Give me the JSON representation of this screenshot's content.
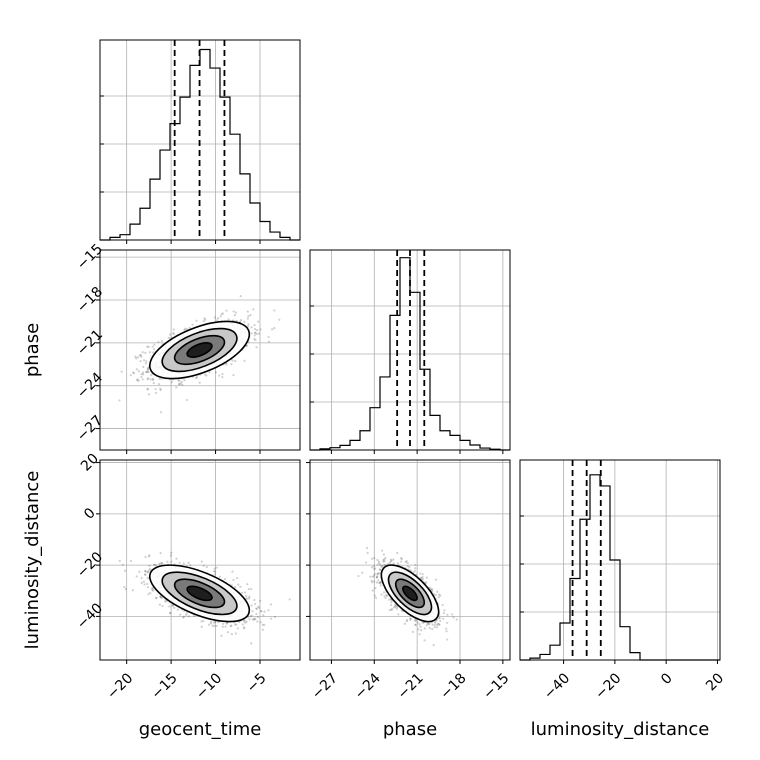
{
  "chart_data": {
    "type": "corner",
    "parameters": [
      "geocent_time",
      "phase",
      "luminosity_distance"
    ],
    "axis_labels": {
      "geocent_time": "geocent_time",
      "phase": "phase",
      "luminosity_distance": "luminosity_distance"
    },
    "ticks": {
      "geocent_time": [
        -20,
        -15,
        -10,
        -5
      ],
      "phase": [
        -27,
        -24,
        -21,
        -18,
        -15
      ],
      "luminosity_distance": [
        -40,
        -20,
        0,
        20
      ]
    },
    "tick_labels": {
      "geocent_time": [
        "−20",
        "−15",
        "−10",
        "−5"
      ],
      "phase": [
        "−27",
        "−24",
        "−21",
        "−18",
        "−15"
      ],
      "luminosity_distance": [
        "−40",
        "−20",
        "0",
        "20"
      ]
    },
    "ranges": {
      "geocent_time": [
        -23,
        -0.5
      ],
      "phase": [
        -28.5,
        -14.5
      ],
      "luminosity_distance": [
        -57,
        21
      ]
    },
    "quantiles": {
      "geocent_time": [
        -14.6,
        -11.8,
        -9.0
      ],
      "phase": [
        -22.4,
        -21.5,
        -20.5
      ],
      "luminosity_distance": [
        -36.5,
        -31.0,
        -25.5
      ]
    },
    "means": {
      "geocent_time": -11.8,
      "phase": -21.5,
      "luminosity_distance": -31.0
    },
    "stds": {
      "geocent_time": 2.8,
      "phase": 1.0,
      "luminosity_distance": 5.5
    },
    "correlations": {
      "phase_vs_geocent_time": 0.55,
      "luminosity_distance_vs_geocent_time": -0.6,
      "luminosity_distance_vs_phase": -0.65
    },
    "histograms": {
      "geocent_time": {
        "bin_edges": [
          -23,
          -21.875,
          -20.75,
          -19.625,
          -18.5,
          -17.375,
          -16.25,
          -15.125,
          -14,
          -12.875,
          -11.75,
          -10.625,
          -9.5,
          -8.375,
          -7.25,
          -6.125,
          -5,
          -3.875,
          -2.75,
          -1.625,
          -0.5
        ],
        "counts": [
          0,
          0.5,
          1,
          3,
          6,
          11.5,
          17,
          22,
          27,
          33,
          36,
          32.5,
          27,
          20,
          12.5,
          7,
          3.5,
          1.5,
          0.5,
          0
        ]
      },
      "phase": {
        "bin_edges": [
          -28.5,
          -27.8,
          -27.1,
          -26.4,
          -25.7,
          -25,
          -24.3,
          -23.6,
          -22.9,
          -22.2,
          -21.5,
          -20.8,
          -20.1,
          -19.4,
          -18.7,
          -18,
          -17.3,
          -16.6,
          -15.9,
          -15.2,
          -14.5
        ],
        "counts": [
          0,
          0.3,
          0.6,
          1.2,
          2.5,
          5,
          11,
          19,
          35,
          50,
          41,
          21,
          9,
          5,
          3.8,
          2.5,
          1.3,
          0.5,
          0.2,
          0
        ],
        "ylim_top": 52
      },
      "luminosity_distance": {
        "bin_edges": [
          -57,
          -53.1,
          -49.2,
          -45.3,
          -41.4,
          -37.5,
          -33.6,
          -29.7,
          -25.8,
          -21.9,
          -18,
          -14.1,
          -10.2,
          -6.3,
          -2.4,
          1.5,
          5.4,
          9.3,
          13.2,
          17.1,
          21
        ],
        "counts": [
          0,
          0.5,
          1.5,
          4,
          10,
          22,
          38,
          50,
          47,
          27,
          9,
          2,
          0,
          0,
          0,
          0,
          0,
          0,
          0,
          0
        ],
        "ylim_top": 54
      }
    },
    "contour_levels_sigma": [
      0.5,
      1,
      1.5,
      2
    ],
    "grid": true
  }
}
